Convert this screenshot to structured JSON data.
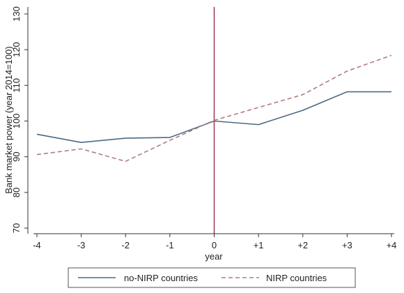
{
  "chart_data": {
    "type": "line",
    "title": "",
    "xlabel": "year",
    "ylabel": "Bank market power (year 2014=100)",
    "categories": [
      "-4",
      "-3",
      "-2",
      "-1",
      "0",
      "+1",
      "+2",
      "+3",
      "+4"
    ],
    "ylim": [
      70,
      130
    ],
    "yticks": [
      "70",
      "80",
      "90",
      "100",
      "110",
      "120",
      "130"
    ],
    "grid": false,
    "legend_position": "bottom",
    "reference_line": {
      "x": "0",
      "color": "#a0344f"
    },
    "series": [
      {
        "name": "no-NIRP countries",
        "style": "solid",
        "color": "#4a6a86",
        "values": [
          96.3,
          94.0,
          95.2,
          95.4,
          100.0,
          99.0,
          103.0,
          108.2,
          108.2
        ]
      },
      {
        "name": "NIRP countries",
        "style": "dashed",
        "color": "#b07a86",
        "values": [
          90.6,
          92.2,
          88.7,
          94.6,
          100.2,
          103.8,
          107.4,
          114.0,
          118.4
        ]
      }
    ]
  }
}
